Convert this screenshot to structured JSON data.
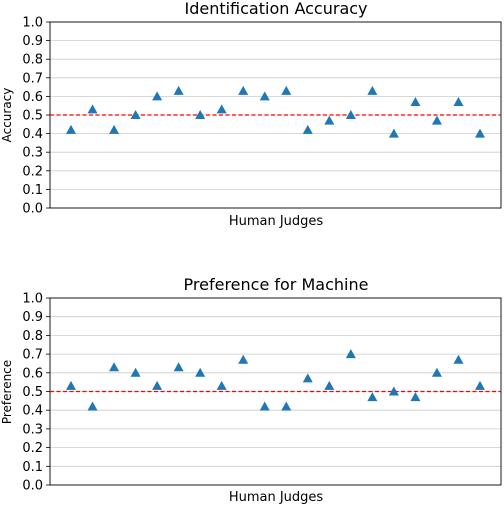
{
  "chart_data": [
    {
      "type": "scatter",
      "title": "Identification Accuracy",
      "xlabel": "Human Judges",
      "ylabel": "Accuracy",
      "ylim": [
        0,
        1
      ],
      "yticks": [
        "0.0",
        "0.1",
        "0.2",
        "0.3",
        "0.4",
        "0.5",
        "0.6",
        "0.7",
        "0.8",
        "0.9",
        "1.0"
      ],
      "grid": "horizontal",
      "reference_line": 0.5,
      "marker": "triangle",
      "series": [
        {
          "values": [
            0.42,
            0.53,
            0.42,
            0.5,
            0.6,
            0.63,
            0.5,
            0.53,
            0.63,
            0.6,
            0.63,
            0.42,
            0.47,
            0.5,
            0.63,
            0.4,
            0.57,
            0.47,
            0.57,
            0.4
          ]
        }
      ]
    },
    {
      "type": "scatter",
      "title": "Preference for Machine",
      "xlabel": "Human Judges",
      "ylabel": "Preference",
      "ylim": [
        0,
        1
      ],
      "yticks": [
        "0.0",
        "0.1",
        "0.2",
        "0.3",
        "0.4",
        "0.5",
        "0.6",
        "0.7",
        "0.8",
        "0.9",
        "1.0"
      ],
      "grid": "horizontal",
      "reference_line": 0.5,
      "marker": "triangle",
      "series": [
        {
          "values": [
            0.53,
            0.42,
            0.63,
            0.6,
            0.53,
            0.63,
            0.6,
            0.53,
            0.67,
            0.42,
            0.42,
            0.57,
            0.53,
            0.7,
            0.47,
            0.5,
            0.47,
            0.6,
            0.67,
            0.53
          ]
        }
      ]
    }
  ],
  "colors": {
    "marker": "#1f77b4",
    "reference_line": "#ff0000",
    "grid": "#cccccc",
    "axis": "#000000"
  }
}
